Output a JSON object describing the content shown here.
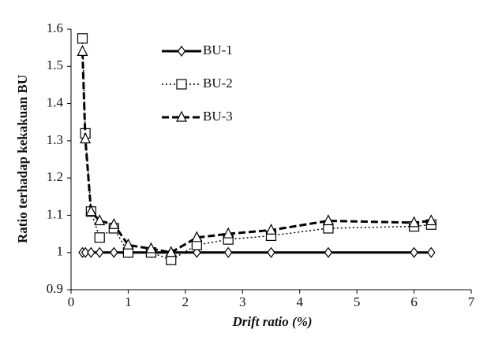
{
  "chart_data": {
    "type": "line",
    "xlabel": "Drift ratio (%)",
    "ylabel": "Ratio terhadap kekakuan BU",
    "x": [
      0.2,
      0.25,
      0.35,
      0.5,
      0.75,
      1.0,
      1.4,
      1.75,
      2.2,
      2.75,
      3.5,
      4.5,
      6.0,
      6.3
    ],
    "series": [
      {
        "name": "BU-1",
        "color": "#000000",
        "marker": "diamond",
        "dash": "solid",
        "values": [
          1,
          1,
          1,
          1,
          1,
          1,
          1,
          1,
          1,
          1,
          1,
          1,
          1,
          1
        ]
      },
      {
        "name": "BU-2",
        "color": "#000000",
        "marker": "square",
        "dash": "dotted",
        "values": [
          1.575,
          1.32,
          1.11,
          1.04,
          1.065,
          1.0,
          1.0,
          0.98,
          1.02,
          1.035,
          1.045,
          1.065,
          1.07,
          1.075
        ]
      },
      {
        "name": "BU-3",
        "color": "#000000",
        "marker": "triangle",
        "dash": "dashed",
        "values": [
          1.54,
          1.305,
          1.11,
          1.085,
          1.075,
          1.02,
          1.01,
          1.0,
          1.04,
          1.05,
          1.06,
          1.085,
          1.08,
          1.085
        ]
      }
    ],
    "xlim": [
      0,
      7
    ],
    "xticks": [
      0,
      1,
      2,
      3,
      4,
      5,
      6,
      7
    ],
    "ylim": [
      0.9,
      1.6
    ],
    "yticks": [
      0.9,
      1,
      1.1,
      1.2,
      1.3,
      1.4,
      1.5,
      1.6
    ],
    "legend": "top-center"
  }
}
